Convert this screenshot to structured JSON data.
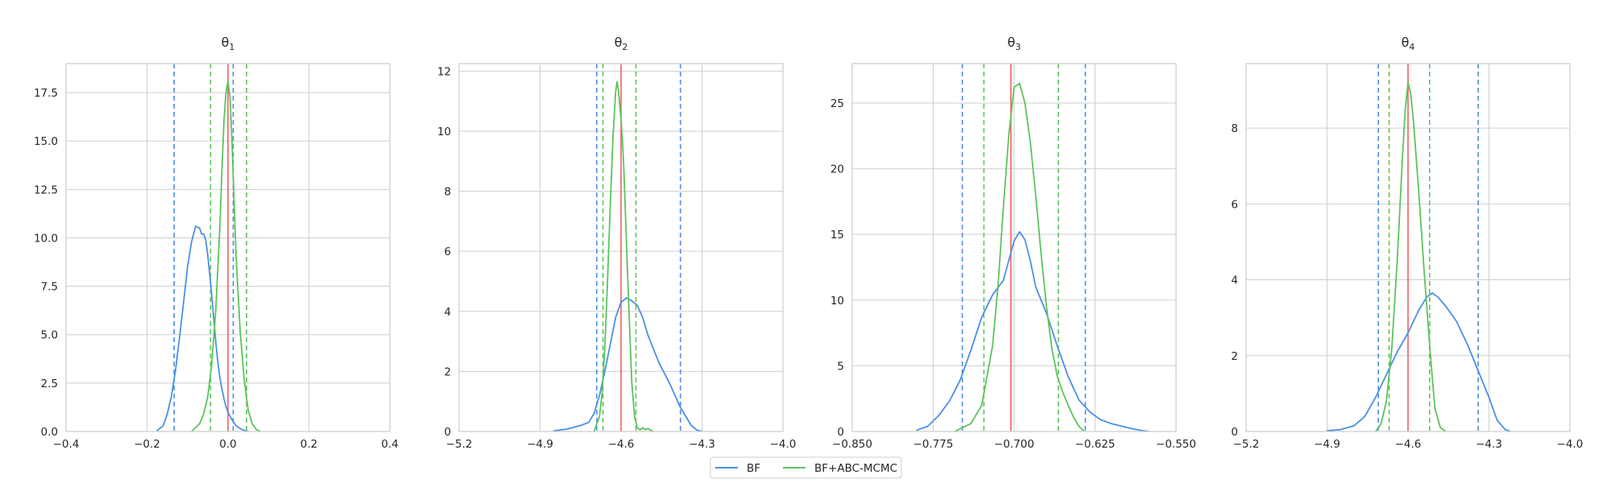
{
  "legend": [
    {
      "label": "BF",
      "color": "#4a8fe7"
    },
    {
      "label": "BF+ABC-MCMC",
      "color": "#5cc35c"
    }
  ],
  "colors": {
    "true_value": "#f06060",
    "grid": "#cfcfcf",
    "frame": "#cccccc"
  },
  "chart_data": [
    {
      "type": "line",
      "title": "θ",
      "title_sub": "1",
      "xlim": [
        -0.4,
        0.4
      ],
      "ylim": [
        0,
        19
      ],
      "xticks": [
        -0.4,
        -0.2,
        0.0,
        0.2,
        0.4
      ],
      "xtick_labels": [
        "−0.4",
        "−0.2",
        "0.0",
        "0.2",
        "0.4"
      ],
      "yticks": [
        0,
        2.5,
        5,
        7.5,
        10,
        12.5,
        15,
        17.5
      ],
      "ytick_labels": [
        "0.0",
        "2.5",
        "5.0",
        "7.5",
        "10.0",
        "12.5",
        "15.0",
        "17.5"
      ],
      "grid": true,
      "true_value": 0.0,
      "series": [
        {
          "name": "BF",
          "color": "#4a8fe7",
          "x": [
            -0.175,
            -0.16,
            -0.15,
            -0.14,
            -0.13,
            -0.12,
            -0.11,
            -0.1,
            -0.09,
            -0.08,
            -0.07,
            -0.065,
            -0.06,
            -0.055,
            -0.05,
            -0.045,
            -0.04,
            -0.035,
            -0.03,
            -0.025,
            -0.02,
            -0.015,
            -0.01,
            -0.005,
            0.0,
            0.005,
            0.01,
            0.02,
            0.03,
            0.04,
            0.05
          ],
          "y": [
            0.05,
            0.3,
            0.9,
            1.8,
            3.1,
            4.8,
            6.6,
            8.5,
            9.8,
            10.6,
            10.5,
            10.2,
            10.2,
            9.9,
            9.1,
            8.1,
            7.0,
            5.8,
            4.6,
            3.6,
            2.8,
            2.2,
            1.7,
            1.3,
            1.0,
            0.8,
            0.6,
            0.3,
            0.15,
            0.05,
            0.0
          ],
          "ci": [
            -0.133,
            0.013
          ]
        },
        {
          "name": "BF+ABC-MCMC",
          "color": "#5cc35c",
          "x": [
            -0.09,
            -0.07,
            -0.06,
            -0.05,
            -0.04,
            -0.03,
            -0.02,
            -0.015,
            -0.01,
            -0.005,
            0.0,
            0.005,
            0.01,
            0.015,
            0.02,
            0.03,
            0.04,
            0.05,
            0.06,
            0.07,
            0.08
          ],
          "y": [
            0.0,
            0.4,
            0.9,
            1.8,
            3.5,
            6.3,
            10.5,
            13.5,
            16.0,
            17.5,
            18.1,
            17.3,
            15.0,
            12.0,
            9.0,
            5.2,
            2.7,
            1.1,
            0.4,
            0.1,
            0.0
          ],
          "ci": [
            -0.043,
            0.046
          ]
        }
      ]
    },
    {
      "type": "line",
      "title": "θ",
      "title_sub": "2",
      "xlim": [
        -5.2,
        -4.0
      ],
      "ylim": [
        0,
        12.25
      ],
      "xticks": [
        -5.2,
        -4.9,
        -4.6,
        -4.3,
        -4.0
      ],
      "xtick_labels": [
        "−5.2",
        "−4.9",
        "−4.6",
        "−4.3",
        "−4.0"
      ],
      "yticks": [
        0,
        2,
        4,
        6,
        8,
        10,
        12
      ],
      "ytick_labels": [
        "0",
        "2",
        "4",
        "6",
        "8",
        "10",
        "12"
      ],
      "grid": true,
      "true_value": -4.6,
      "series": [
        {
          "name": "BF",
          "color": "#4a8fe7",
          "x": [
            -4.85,
            -4.8,
            -4.75,
            -4.72,
            -4.7,
            -4.68,
            -4.66,
            -4.64,
            -4.62,
            -4.6,
            -4.58,
            -4.56,
            -4.54,
            -4.52,
            -4.5,
            -4.46,
            -4.42,
            -4.38,
            -4.34,
            -4.32,
            -4.3
          ],
          "y": [
            0.02,
            0.08,
            0.2,
            0.3,
            0.6,
            1.2,
            2.0,
            2.9,
            3.8,
            4.3,
            4.45,
            4.35,
            4.2,
            3.8,
            3.2,
            2.3,
            1.6,
            0.8,
            0.2,
            0.05,
            0.0
          ],
          "ci": [
            -4.69,
            -4.38
          ]
        },
        {
          "name": "BF+ABC-MCMC",
          "color": "#5cc35c",
          "x": [
            -4.7,
            -4.68,
            -4.67,
            -4.66,
            -4.65,
            -4.64,
            -4.63,
            -4.62,
            -4.615,
            -4.61,
            -4.6,
            -4.595,
            -4.59,
            -4.585,
            -4.58,
            -4.57,
            -4.56,
            -4.55,
            -4.54,
            -4.53,
            -4.52,
            -4.51,
            -4.5,
            -4.49,
            -4.48
          ],
          "y": [
            0.0,
            0.5,
            1.3,
            2.8,
            5.0,
            7.5,
            9.8,
            11.3,
            11.65,
            11.4,
            10.4,
            9.7,
            8.8,
            7.6,
            6.3,
            3.9,
            1.6,
            0.5,
            0.12,
            0.05,
            0.12,
            0.06,
            0.1,
            0.04,
            0.0
          ],
          "ci": [
            -4.667,
            -4.545
          ]
        }
      ]
    },
    {
      "type": "line",
      "title": "θ",
      "title_sub": "3",
      "xlim": [
        -0.85,
        -0.55
      ],
      "ylim": [
        0,
        28
      ],
      "xticks": [
        -0.85,
        -0.775,
        -0.7,
        -0.625,
        -0.55
      ],
      "xtick_labels": [
        "−0.850",
        "−0.775",
        "−0.700",
        "−0.625",
        "−0.550"
      ],
      "yticks": [
        0,
        5,
        10,
        15,
        20,
        25
      ],
      "ytick_labels": [
        "0",
        "5",
        "10",
        "15",
        "20",
        "25"
      ],
      "grid": true,
      "true_value": -0.703,
      "series": [
        {
          "name": "BF",
          "color": "#4a8fe7",
          "x": [
            -0.79,
            -0.78,
            -0.77,
            -0.76,
            -0.75,
            -0.74,
            -0.73,
            -0.72,
            -0.71,
            -0.705,
            -0.7,
            -0.695,
            -0.69,
            -0.685,
            -0.68,
            -0.67,
            -0.66,
            -0.65,
            -0.64,
            -0.63,
            -0.62,
            -0.61,
            -0.6,
            -0.59,
            -0.58,
            -0.575
          ],
          "y": [
            0.1,
            0.4,
            1.2,
            2.3,
            3.9,
            6.2,
            8.7,
            10.4,
            11.5,
            13.0,
            14.5,
            15.2,
            14.6,
            13.0,
            11.0,
            9.0,
            6.5,
            4.2,
            2.4,
            1.5,
            0.9,
            0.6,
            0.4,
            0.2,
            0.05,
            0.0
          ],
          "ci": [
            -0.748,
            -0.634
          ]
        },
        {
          "name": "BF+ABC-MCMC",
          "color": "#5cc35c",
          "x": [
            -0.755,
            -0.74,
            -0.73,
            -0.72,
            -0.715,
            -0.71,
            -0.705,
            -0.7,
            -0.695,
            -0.69,
            -0.685,
            -0.68,
            -0.675,
            -0.67,
            -0.665,
            -0.66,
            -0.655,
            -0.65,
            -0.645,
            -0.64,
            -0.635
          ],
          "y": [
            0.0,
            0.6,
            2.0,
            6.5,
            11.0,
            17.0,
            22.5,
            26.2,
            26.5,
            25.0,
            22.0,
            18.0,
            13.5,
            9.5,
            6.3,
            4.2,
            3.0,
            2.0,
            1.1,
            0.4,
            0.0
          ],
          "ci": [
            -0.728,
            -0.659
          ]
        }
      ]
    },
    {
      "type": "line",
      "title": "θ",
      "title_sub": "4",
      "xlim": [
        -5.2,
        -4.0
      ],
      "ylim": [
        0,
        9.7
      ],
      "xticks": [
        -5.2,
        -4.9,
        -4.6,
        -4.3,
        -4.0
      ],
      "xtick_labels": [
        "−5.2",
        "−4.9",
        "−4.6",
        "−4.3",
        "−4.0"
      ],
      "yticks": [
        0,
        2,
        4,
        6,
        8
      ],
      "ytick_labels": [
        "0",
        "2",
        "4",
        "6",
        "8"
      ],
      "grid": true,
      "true_value": -4.6,
      "series": [
        {
          "name": "BF",
          "color": "#4a8fe7",
          "x": [
            -4.9,
            -4.85,
            -4.8,
            -4.76,
            -4.72,
            -4.68,
            -4.64,
            -4.6,
            -4.56,
            -4.53,
            -4.51,
            -4.49,
            -4.46,
            -4.42,
            -4.38,
            -4.34,
            -4.3,
            -4.27,
            -4.24,
            -4.22
          ],
          "y": [
            0.02,
            0.05,
            0.15,
            0.4,
            0.9,
            1.5,
            2.1,
            2.6,
            3.2,
            3.55,
            3.65,
            3.55,
            3.3,
            2.9,
            2.3,
            1.6,
            0.9,
            0.3,
            0.05,
            0.0
          ],
          "ci": [
            -4.71,
            -4.34
          ]
        },
        {
          "name": "BF+ABC-MCMC",
          "color": "#5cc35c",
          "x": [
            -4.72,
            -4.7,
            -4.68,
            -4.66,
            -4.64,
            -4.62,
            -4.61,
            -4.6,
            -4.59,
            -4.58,
            -4.56,
            -4.54,
            -4.52,
            -4.51,
            -4.5,
            -4.48,
            -4.46
          ],
          "y": [
            0.0,
            0.2,
            0.8,
            2.2,
            4.5,
            7.3,
            8.5,
            9.2,
            8.9,
            8.2,
            6.3,
            4.2,
            2.3,
            1.4,
            0.6,
            0.1,
            0.0
          ],
          "ci": [
            -4.67,
            -4.52
          ]
        }
      ]
    }
  ]
}
